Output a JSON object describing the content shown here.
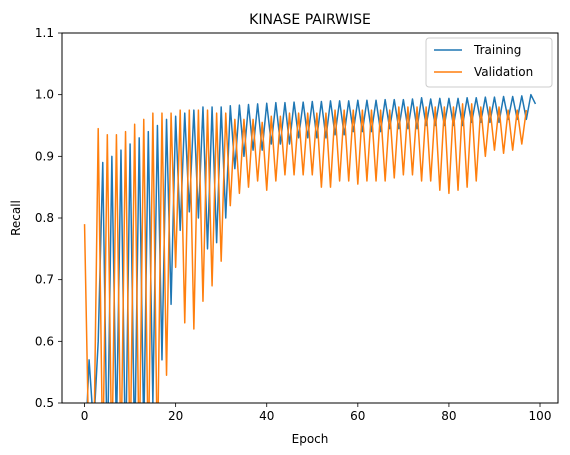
{
  "chart_data": {
    "type": "line",
    "title": "KINASE PAIRWISE",
    "xlabel": "Epoch",
    "ylabel": "Recall",
    "xlim": [
      -4.95,
      103.95
    ],
    "ylim": [
      0.5,
      1.1
    ],
    "x_ticks": [
      0,
      20,
      40,
      60,
      80,
      100
    ],
    "y_ticks": [
      0.5,
      0.6,
      0.7,
      0.8,
      0.9,
      1.0,
      1.1
    ],
    "legend_position": "top-right",
    "grid": false,
    "series": [
      {
        "name": "Training",
        "color": "#1f77b4",
        "values": [
          0.4,
          0.57,
          0.46,
          0.6,
          0.89,
          0.4,
          0.9,
          0.45,
          0.91,
          0.4,
          0.92,
          0.42,
          0.93,
          0.45,
          0.94,
          0.5,
          0.95,
          0.57,
          0.96,
          0.66,
          0.965,
          0.78,
          0.97,
          0.81,
          0.975,
          0.8,
          0.98,
          0.75,
          0.98,
          0.76,
          0.98,
          0.8,
          0.982,
          0.88,
          0.983,
          0.9,
          0.984,
          0.91,
          0.985,
          0.91,
          0.986,
          0.92,
          0.987,
          0.92,
          0.987,
          0.92,
          0.988,
          0.93,
          0.988,
          0.93,
          0.989,
          0.93,
          0.989,
          0.93,
          0.99,
          0.935,
          0.99,
          0.935,
          0.99,
          0.94,
          0.991,
          0.94,
          0.991,
          0.94,
          0.991,
          0.94,
          0.992,
          0.945,
          0.992,
          0.945,
          0.992,
          0.945,
          0.993,
          0.945,
          0.995,
          0.95,
          0.993,
          0.95,
          0.994,
          0.95,
          0.994,
          0.95,
          0.994,
          0.95,
          0.995,
          0.955,
          0.995,
          0.955,
          0.996,
          0.955,
          0.996,
          0.955,
          0.997,
          0.96,
          0.997,
          0.96,
          0.998,
          0.96,
          1.0,
          0.985
        ]
      },
      {
        "name": "Validation",
        "color": "#ff7f0e",
        "values": [
          0.79,
          0.4,
          0.4,
          0.945,
          0.4,
          0.935,
          0.4,
          0.935,
          0.4,
          0.94,
          0.4,
          0.952,
          0.4,
          0.96,
          0.4,
          0.97,
          0.4,
          0.97,
          0.545,
          0.97,
          0.72,
          0.975,
          0.63,
          0.975,
          0.62,
          0.975,
          0.665,
          0.975,
          0.69,
          0.97,
          0.73,
          0.97,
          0.82,
          0.96,
          0.84,
          0.96,
          0.85,
          0.96,
          0.86,
          0.955,
          0.845,
          0.965,
          0.86,
          0.965,
          0.87,
          0.97,
          0.87,
          0.97,
          0.87,
          0.97,
          0.87,
          0.97,
          0.85,
          0.97,
          0.85,
          0.975,
          0.86,
          0.975,
          0.86,
          0.975,
          0.855,
          0.975,
          0.86,
          0.975,
          0.86,
          0.975,
          0.86,
          0.975,
          0.865,
          0.98,
          0.87,
          0.98,
          0.87,
          0.98,
          0.86,
          0.98,
          0.86,
          0.98,
          0.845,
          0.98,
          0.84,
          0.98,
          0.845,
          0.985,
          0.85,
          0.985,
          0.86,
          0.98,
          0.9,
          0.98,
          0.91,
          0.98,
          0.905,
          0.975,
          0.91,
          0.975,
          0.92,
          0.975
        ]
      }
    ]
  }
}
